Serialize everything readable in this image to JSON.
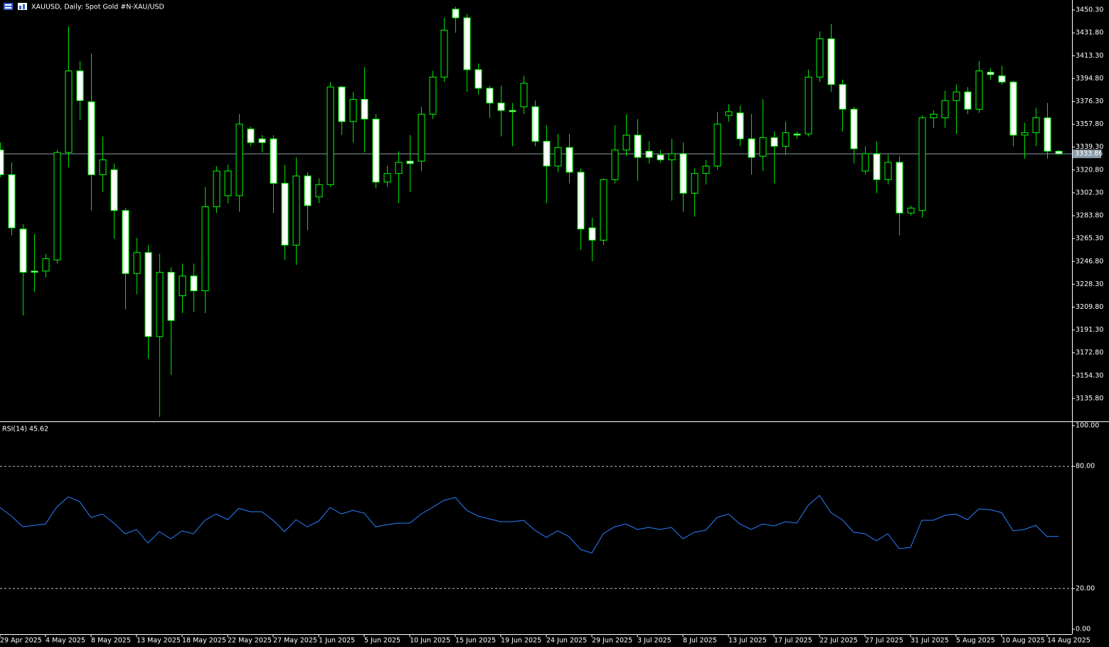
{
  "chart_data": [
    {
      "type": "candlestick",
      "title": "XAUUSD, Daily:  Spot Gold #N-XAU/USD",
      "categories": [
        "29 Apr 2025",
        null,
        null,
        null,
        "4 May 2025",
        null,
        null,
        null,
        "8 May 2025",
        null,
        null,
        null,
        "13 May 2025",
        null,
        null,
        null,
        "18 May 2025",
        null,
        null,
        null,
        "22 May 2025",
        null,
        null,
        null,
        "27 May 2025",
        null,
        null,
        null,
        "1 Jun 2025",
        null,
        null,
        null,
        "5 Jun 2025",
        null,
        null,
        null,
        "10 Jun 2025",
        null,
        null,
        null,
        "15 Jun 2025",
        null,
        null,
        null,
        "19 Jun 2025",
        null,
        null,
        null,
        "24 Jun 2025",
        null,
        null,
        null,
        "29 Jun 2025",
        null,
        null,
        null,
        "3 Jul 2025",
        null,
        null,
        null,
        "8 Jul 2025",
        null,
        null,
        null,
        "13 Jul 2025",
        null,
        null,
        null,
        "17 Jul 2025",
        null,
        null,
        null,
        "22 Jul 2025",
        null,
        null,
        null,
        "27 Jul 2025",
        null,
        null,
        null,
        "31 Jul 2025",
        null,
        null,
        null,
        "5 Aug 2025",
        null,
        null,
        null,
        "10 Aug 2025",
        null,
        null,
        null,
        "14 Aug 2025",
        null
      ],
      "open": [
        3337,
        3317,
        3273,
        3239,
        3239,
        3248,
        3335,
        3401,
        3376,
        3317,
        3321,
        3288,
        3237,
        3254,
        3186,
        3238,
        3219,
        3235,
        3223,
        3291,
        3300,
        3300,
        3354,
        3346,
        3346,
        3310,
        3260,
        3316,
        3299,
        3309,
        3388,
        3360,
        3378,
        3362,
        3311,
        3318,
        3328,
        3328,
        3366,
        3396,
        3451,
        3444,
        3402,
        3387,
        3375,
        3369,
        3372,
        3372,
        3344,
        3324,
        3339,
        3319,
        3274,
        3264,
        3313,
        3337,
        3349,
        3336,
        3333,
        3329,
        3334,
        3302,
        3318,
        3324,
        3365,
        3367,
        3346,
        3332,
        3347,
        3340,
        3350,
        3350,
        3396,
        3427,
        3390,
        3370,
        3320,
        3334,
        3313,
        3327,
        3286,
        3288,
        3363,
        3363,
        3377,
        3384,
        3370,
        3400,
        3397,
        3392,
        3349,
        3351,
        3363,
        3336
      ],
      "high": [
        3343,
        3327,
        3277,
        3269,
        3253,
        3337,
        3437,
        3409,
        3415,
        3348,
        3326,
        3290,
        3266,
        3260,
        3253,
        3242,
        3245,
        3245,
        3307,
        3324,
        3325,
        3366,
        3356,
        3349,
        3349,
        3325,
        3331,
        3319,
        3314,
        3392,
        3389,
        3384,
        3404,
        3366,
        3324,
        3336,
        3349,
        3372,
        3401,
        3444,
        3453,
        3447,
        3407,
        3389,
        3389,
        3375,
        3397,
        3377,
        3357,
        3350,
        3350,
        3322,
        3282,
        3314,
        3357,
        3366,
        3362,
        3344,
        3337,
        3346,
        3343,
        3322,
        3329,
        3368,
        3374,
        3373,
        3366,
        3378,
        3352,
        3360,
        3352,
        3402,
        3433,
        3439,
        3394,
        3372,
        3340,
        3344,
        3333,
        3332,
        3292,
        3365,
        3369,
        3385,
        3390,
        3388,
        3409,
        3403,
        3405,
        3393,
        3359,
        3371,
        3375,
        3337
      ],
      "low": [
        3315,
        3268,
        3203,
        3222,
        3234,
        3245,
        3323,
        3361,
        3288,
        3303,
        3265,
        3208,
        3220,
        3168,
        3121,
        3155,
        3205,
        3206,
        3205,
        3286,
        3294,
        3287,
        3340,
        3335,
        3286,
        3248,
        3244,
        3272,
        3294,
        3307,
        3349,
        3343,
        3335,
        3306,
        3307,
        3294,
        3303,
        3320,
        3362,
        3392,
        3432,
        3384,
        3382,
        3363,
        3348,
        3340,
        3366,
        3340,
        3294,
        3319,
        3310,
        3256,
        3247,
        3260,
        3310,
        3332,
        3312,
        3326,
        3327,
        3296,
        3287,
        3283,
        3309,
        3321,
        3360,
        3340,
        3317,
        3320,
        3310,
        3333,
        3346,
        3348,
        3392,
        3384,
        3352,
        3326,
        3317,
        3302,
        3309,
        3268,
        3284,
        3282,
        3355,
        3355,
        3350,
        3366,
        3367,
        3394,
        3390,
        3340,
        3330,
        3340,
        3330,
        3333
      ],
      "close": [
        3317,
        3274,
        3238,
        3238,
        3249,
        3335,
        3401,
        3377,
        3317,
        3329,
        3288,
        3237,
        3254,
        3186,
        3238,
        3199,
        3235,
        3223,
        3291,
        3320,
        3320,
        3358,
        3343,
        3343,
        3310,
        3260,
        3316,
        3292,
        3309,
        3388,
        3360,
        3378,
        3362,
        3311,
        3318,
        3327,
        3326,
        3366,
        3396,
        3434,
        3444,
        3402,
        3387,
        3375,
        3369,
        3368,
        3391,
        3344,
        3324,
        3339,
        3319,
        3273,
        3264,
        3313,
        3337,
        3349,
        3331,
        3331,
        3329,
        3334,
        3302,
        3318,
        3324,
        3358,
        3368,
        3346,
        3331,
        3347,
        3340,
        3351,
        3349,
        3396,
        3427,
        3390,
        3370,
        3338,
        3334,
        3313,
        3327,
        3286,
        3290,
        3363,
        3366,
        3377,
        3384,
        3370,
        3401,
        3398,
        3392,
        3349,
        3351,
        3363,
        3336,
        3333.86
      ],
      "last_price": 3333.86,
      "up_color": "#00ff00",
      "down_color": "#ffffff",
      "wick_color": "#00e000",
      "ylim": [
        3117.9,
        3458.4
      ],
      "yticks": [
        {
          "value": 3450.3,
          "label": "3450.30"
        },
        {
          "value": 3431.8,
          "label": "3431.80"
        },
        {
          "value": 3413.3,
          "label": "3413.30"
        },
        {
          "value": 3394.8,
          "label": "3394.80"
        },
        {
          "value": 3376.3,
          "label": "3376.30"
        },
        {
          "value": 3357.8,
          "label": "3357.80"
        },
        {
          "value": 3339.3,
          "label": "3339.30"
        },
        {
          "value": 3320.8,
          "label": "3320.80"
        },
        {
          "value": 3302.3,
          "label": "3302.30"
        },
        {
          "value": 3283.8,
          "label": "3283.80"
        },
        {
          "value": 3265.3,
          "label": "3265.30"
        },
        {
          "value": 3246.8,
          "label": "3246.80"
        },
        {
          "value": 3228.3,
          "label": "3228.30"
        },
        {
          "value": 3209.8,
          "label": "3209.80"
        },
        {
          "value": 3191.3,
          "label": "3191.30"
        },
        {
          "value": 3172.8,
          "label": "3172.80"
        },
        {
          "value": 3154.3,
          "label": "3154.30"
        },
        {
          "value": 3135.8,
          "label": "3135.80"
        }
      ]
    },
    {
      "type": "line",
      "title": "RSI(14) 45.62",
      "color": "#2a7fff",
      "values": [
        59.8,
        55.6,
        50.3,
        51.0,
        51.7,
        60.1,
        65.0,
        62.6,
        54.9,
        56.6,
        52.1,
        46.9,
        49.0,
        42.3,
        47.9,
        44.4,
        48.3,
        46.9,
        53.5,
        56.6,
        53.8,
        59.4,
        57.7,
        57.7,
        53.5,
        47.9,
        53.8,
        50.3,
        53.1,
        59.8,
        56.6,
        58.4,
        57.0,
        50.3,
        51.4,
        52.1,
        52.1,
        56.6,
        59.8,
        63.3,
        64.7,
        58.4,
        55.6,
        54.2,
        52.8,
        52.8,
        53.5,
        48.6,
        45.1,
        48.3,
        45.5,
        39.2,
        37.4,
        46.9,
        50.3,
        51.7,
        49.0,
        50.0,
        49.0,
        50.0,
        44.4,
        47.6,
        48.6,
        54.9,
        56.6,
        51.7,
        49.0,
        51.7,
        50.7,
        52.8,
        52.1,
        60.8,
        65.7,
        57.3,
        53.8,
        47.6,
        46.9,
        43.4,
        46.9,
        39.5,
        40.2,
        53.5,
        53.5,
        55.9,
        56.6,
        53.8,
        59.1,
        58.7,
        57.3,
        48.3,
        49.0,
        51.0,
        45.5,
        45.62
      ],
      "ylim": [
        -2.45,
        101.4
      ],
      "yticks": [
        {
          "value": 100,
          "label": "100.00"
        },
        {
          "value": 80,
          "label": "80.00"
        },
        {
          "value": 20,
          "label": "20.00"
        },
        {
          "value": 0,
          "label": "0.00"
        }
      ],
      "levels": [
        20,
        80
      ]
    }
  ]
}
